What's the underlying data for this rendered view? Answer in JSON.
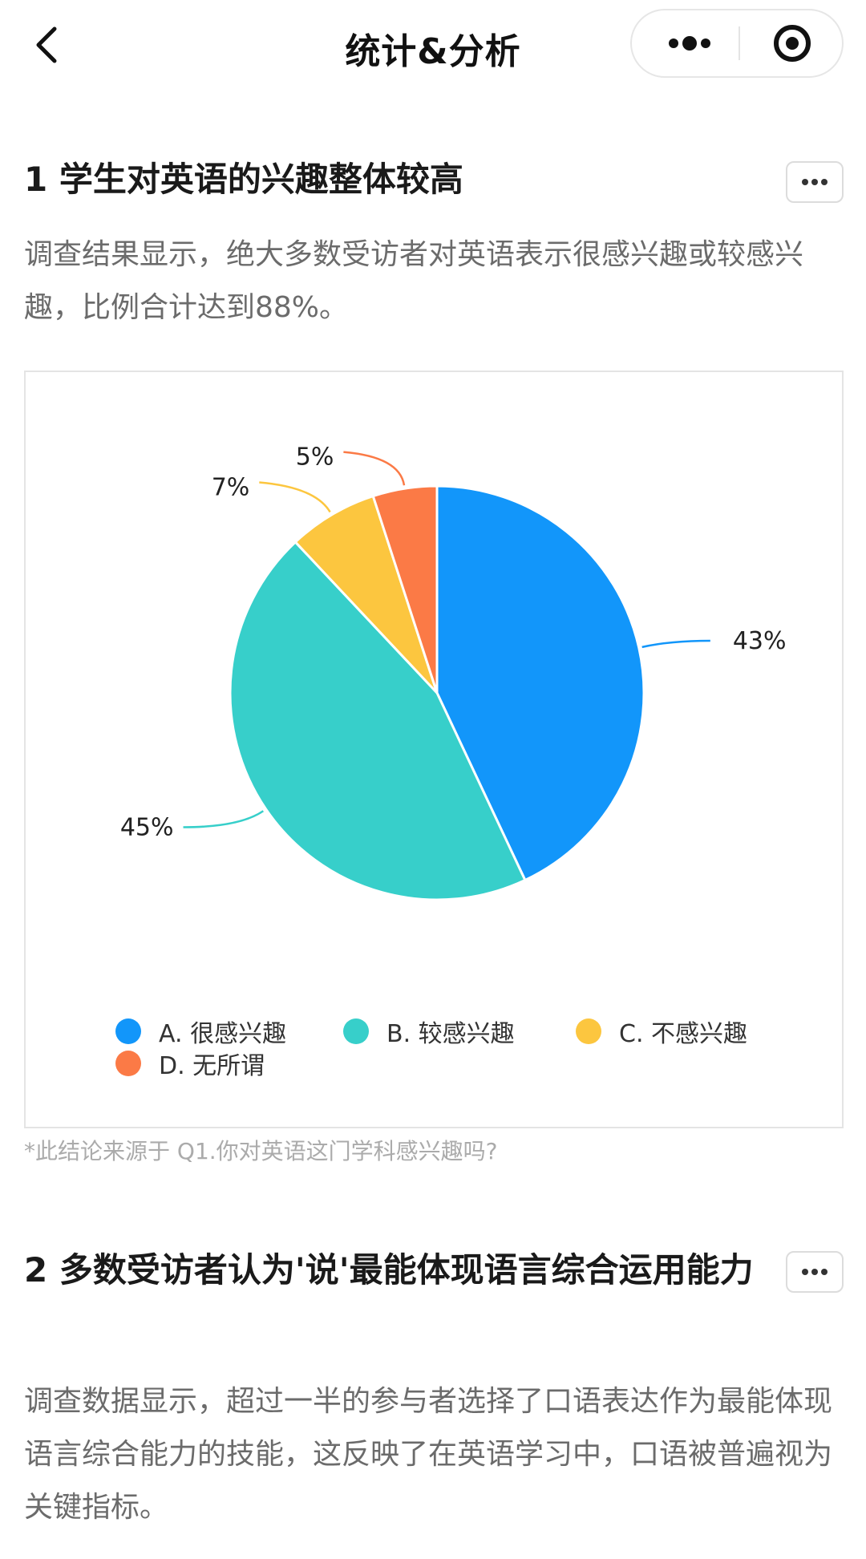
{
  "nav": {
    "title": "统计&分析",
    "back_icon": "chevron-left-icon",
    "more_icon": "three-dots-icon",
    "target_icon": "target-circle-icon"
  },
  "sections": [
    {
      "title": "1 学生对英语的兴趣整体较高",
      "description": "调查结果显示，绝大多数受访者对英语表示很感兴趣或较感兴趣，比例合计达到88%。",
      "footnote": "*此结论来源于 Q1.你对英语这门学科感兴趣吗?",
      "more_icon": "three-dots-icon"
    },
    {
      "title": "2 多数受访者认为'说'最能体现语言综合运用能力",
      "description": "调查数据显示，超过一半的参与者选择了口语表达作为最能体现语言综合能力的技能，这反映了在英语学习中，口语被普遍视为关键指标。",
      "more_icon": "three-dots-icon"
    }
  ],
  "chart_data": {
    "type": "pie",
    "title": "",
    "categories": [
      "A. 很感兴趣",
      "B. 较感兴趣",
      "C. 不感兴趣",
      "D. 无所谓"
    ],
    "values": [
      43,
      45,
      7,
      5
    ],
    "labels": [
      "43%",
      "45%",
      "7%",
      "5%"
    ],
    "colors": [
      "#1296fa",
      "#37cfca",
      "#fcc63f",
      "#fb7a46"
    ],
    "legend_position": "bottom"
  }
}
